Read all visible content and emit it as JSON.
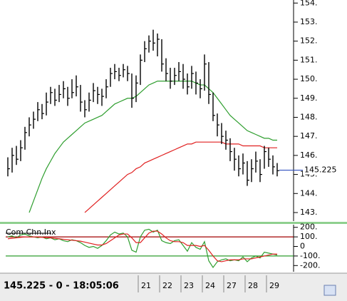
{
  "chart_data": [
    {
      "type": "ohlc",
      "categories": [
        null,
        null,
        null,
        null,
        null,
        null,
        null,
        null,
        null,
        null,
        null,
        null,
        null,
        null,
        null,
        null,
        null,
        null,
        null,
        null,
        null,
        null,
        null,
        null,
        null,
        null,
        null,
        null,
        null,
        null,
        null,
        "21",
        null,
        null,
        null,
        null,
        "22",
        null,
        null,
        null,
        null,
        "23",
        null,
        null,
        null,
        null,
        "24",
        null,
        null,
        null,
        null,
        "27",
        null,
        null,
        null,
        null,
        "28",
        null,
        null,
        null,
        null,
        "29",
        null,
        null
      ],
      "high": [
        145.9,
        146.4,
        146.5,
        146.8,
        147.5,
        148.0,
        148.3,
        148.8,
        148.7,
        149.3,
        149.6,
        149.5,
        149.7,
        149.9,
        149.6,
        150.0,
        150.2,
        149.7,
        148.9,
        149.3,
        149.8,
        149.6,
        149.5,
        150.0,
        150.6,
        150.8,
        150.6,
        150.8,
        150.7,
        150.3,
        150.2,
        151.3,
        152.0,
        152.3,
        152.6,
        152.4,
        152.1,
        151.1,
        150.6,
        150.6,
        150.9,
        150.8,
        150.3,
        150.7,
        150.4,
        150.0,
        151.3,
        150.9,
        149.3,
        148.2,
        147.7,
        147.3,
        146.9,
        146.4,
        146.0,
        146.1,
        145.7,
        145.8,
        146.2,
        145.8,
        146.5,
        146.4,
        146.0,
        145.6
      ],
      "low": [
        144.9,
        145.1,
        145.5,
        145.7,
        146.3,
        147.0,
        147.4,
        147.8,
        147.9,
        148.1,
        148.7,
        148.6,
        148.8,
        149.0,
        148.6,
        149.0,
        149.1,
        148.3,
        148.0,
        148.3,
        148.8,
        148.7,
        148.6,
        149.0,
        149.6,
        150.0,
        149.9,
        150.1,
        149.9,
        148.5,
        148.8,
        149.7,
        150.9,
        151.4,
        151.5,
        151.2,
        150.4,
        149.9,
        149.5,
        149.7,
        149.9,
        149.5,
        149.2,
        149.5,
        149.2,
        149.0,
        149.4,
        148.7,
        147.8,
        147.0,
        146.6,
        146.3,
        145.7,
        145.2,
        144.9,
        145.0,
        144.4,
        144.6,
        145.1,
        144.6,
        145.3,
        145.4,
        145.0,
        144.9
      ],
      "close": [
        145.3,
        146.0,
        145.8,
        146.4,
        147.2,
        147.6,
        147.9,
        148.4,
        148.2,
        148.8,
        149.3,
        148.9,
        149.2,
        149.5,
        149.0,
        149.3,
        149.6,
        148.8,
        148.4,
        148.9,
        149.4,
        149.2,
        149.1,
        149.6,
        150.3,
        150.4,
        150.2,
        150.5,
        150.3,
        149.0,
        149.8,
        151.0,
        151.6,
        152.0,
        151.9,
        152.1,
        150.8,
        150.3,
        149.9,
        150.2,
        150.4,
        150.0,
        149.6,
        150.3,
        149.8,
        149.5,
        150.8,
        149.2,
        148.1,
        147.6,
        147.0,
        146.8,
        146.2,
        145.8,
        145.3,
        145.6,
        144.7,
        145.3,
        145.7,
        145.0,
        146.2,
        145.8,
        145.4,
        145.2
      ],
      "color": "#000000",
      "series": [
        {
          "color": "#2e9e2e",
          "values": [
            null,
            null,
            null,
            null,
            null,
            143.0,
            143.6,
            144.2,
            144.8,
            145.3,
            145.7,
            146.1,
            146.4,
            146.7,
            146.9,
            147.1,
            147.3,
            147.5,
            147.7,
            147.8,
            147.9,
            148.0,
            148.1,
            148.3,
            148.5,
            148.7,
            148.8,
            148.9,
            149.0,
            149.0,
            149.1,
            149.3,
            149.5,
            149.7,
            149.8,
            149.9,
            149.9,
            149.9,
            149.9,
            149.9,
            149.9,
            149.9,
            149.9,
            149.9,
            149.8,
            149.7,
            149.7,
            149.5,
            149.3,
            149.0,
            148.7,
            148.4,
            148.1,
            147.9,
            147.7,
            147.5,
            147.3,
            147.2,
            147.1,
            147.0,
            146.9,
            146.9,
            146.8,
            146.8
          ]
        },
        {
          "color": "#e02020",
          "values": [
            null,
            null,
            null,
            null,
            null,
            null,
            null,
            null,
            null,
            null,
            null,
            null,
            null,
            null,
            null,
            null,
            null,
            null,
            143.0,
            143.2,
            143.4,
            143.6,
            143.8,
            144.0,
            144.2,
            144.4,
            144.6,
            144.8,
            145.0,
            145.1,
            145.3,
            145.4,
            145.6,
            145.7,
            145.8,
            145.9,
            146.0,
            146.1,
            146.2,
            146.3,
            146.4,
            146.5,
            146.6,
            146.6,
            146.7,
            146.7,
            146.7,
            146.7,
            146.7,
            146.7,
            146.7,
            146.6,
            146.6,
            146.6,
            146.6,
            146.5,
            146.5,
            146.5,
            146.5,
            146.5,
            146.4,
            146.4,
            146.4,
            146.4
          ]
        }
      ],
      "ylim": [
        142.55,
        154.16
      ],
      "yticks": [
        {
          "value": 143,
          "label": "143."
        },
        {
          "value": 144,
          "label": "144."
        },
        {
          "value": 145,
          "label": "145."
        },
        {
          "value": 146,
          "label": "146."
        },
        {
          "value": 147,
          "label": "147."
        },
        {
          "value": 148,
          "label": "148."
        },
        {
          "value": 149,
          "label": "149."
        },
        {
          "value": 150,
          "label": "150."
        },
        {
          "value": 151,
          "label": "151."
        },
        {
          "value": 152,
          "label": "152."
        },
        {
          "value": 153,
          "label": "153."
        },
        {
          "value": 154,
          "label": "154."
        }
      ],
      "last_price": 145.225,
      "last_price_color": "#3050c0",
      "status": "145.225 - 0 - 18:05:06"
    },
    {
      "type": "line",
      "title": "Com.Chn.Inx",
      "series": [
        {
          "color": "#2e9e2e",
          "values": [
            100,
            110,
            90,
            120,
            130,
            110,
            100,
            90,
            100,
            80,
            90,
            70,
            80,
            60,
            50,
            70,
            60,
            40,
            10,
            -10,
            0,
            -20,
            10,
            60,
            120,
            150,
            130,
            140,
            100,
            -40,
            -60,
            100,
            170,
            180,
            150,
            170,
            60,
            40,
            30,
            60,
            70,
            10,
            -50,
            40,
            -10,
            -30,
            50,
            -150,
            -220,
            -160,
            -140,
            -130,
            -150,
            -140,
            -150,
            -110,
            -160,
            -120,
            -100,
            -120,
            -60,
            -70,
            -80,
            -90
          ]
        },
        {
          "color": "#e02020",
          "values": [
            80,
            85,
            90,
            95,
            100,
            100,
            100,
            98,
            95,
            92,
            90,
            85,
            80,
            75,
            70,
            65,
            60,
            55,
            45,
            35,
            25,
            15,
            15,
            30,
            60,
            90,
            120,
            130,
            130,
            90,
            40,
            40,
            90,
            140,
            160,
            160,
            130,
            90,
            60,
            50,
            50,
            40,
            10,
            10,
            10,
            0,
            10,
            -40,
            -100,
            -150,
            -160,
            -150,
            -140,
            -140,
            -140,
            -130,
            -130,
            -130,
            -120,
            -110,
            -100,
            -90,
            -80,
            -80
          ]
        }
      ],
      "ylim": [
        -250,
        250
      ],
      "yticks": [
        {
          "value": 200,
          "label": "200."
        },
        {
          "value": 100,
          "label": "100."
        },
        0,
        {
          "value": -100,
          "label": "-100."
        },
        {
          "value": -200,
          "label": "-200."
        }
      ],
      "reference_lines": [
        {
          "value": 100,
          "color": "#a00000"
        },
        {
          "value": -100,
          "color": "#2e9e2e"
        }
      ]
    }
  ]
}
